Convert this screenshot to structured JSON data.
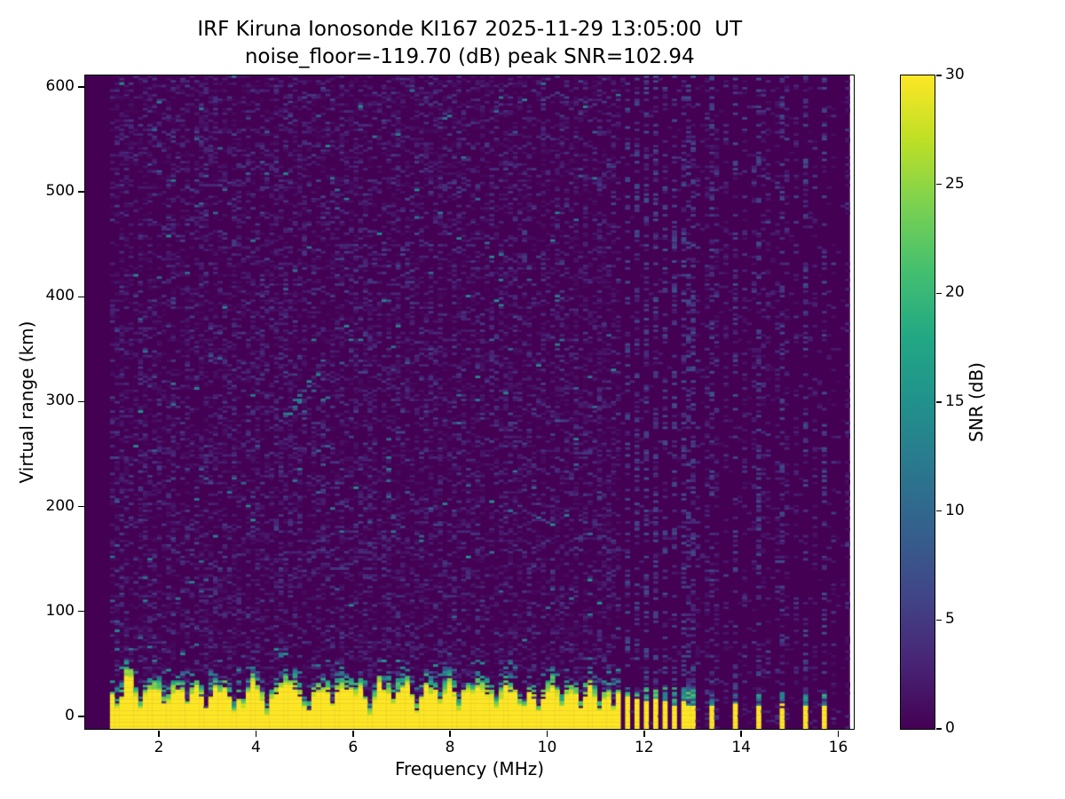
{
  "chart_data": {
    "type": "heatmap",
    "title_line1": "IRF Kiruna Ionosonde KI167 2025-11-29 13:05:00  UT",
    "title_line2": "noise_floor=-119.70 (dB) peak SNR=102.94",
    "station": "KI167",
    "timestamp": "2025-11-29 13:05:00 UT",
    "noise_floor_db": -119.7,
    "peak_snr_db": 102.94,
    "xlabel": "Frequency (MHz)",
    "ylabel": "Virtual range (km)",
    "colorbar_label": "SNR (dB)",
    "xlim": [
      0.49,
      16.32
    ],
    "ylim": [
      -12,
      611
    ],
    "clim": [
      0,
      30
    ],
    "xticks": [
      2,
      4,
      6,
      8,
      10,
      12,
      14,
      16
    ],
    "yticks": [
      0,
      100,
      200,
      300,
      400,
      500,
      600
    ],
    "colorbar_ticks": [
      0,
      5,
      10,
      15,
      20,
      25,
      30
    ],
    "grid": false,
    "legend": "none",
    "colormap": "viridis",
    "colormap_stops": [
      [
        0.0,
        "#440154"
      ],
      [
        0.1,
        "#482475"
      ],
      [
        0.2,
        "#414487"
      ],
      [
        0.3,
        "#355f8d"
      ],
      [
        0.4,
        "#2a788e"
      ],
      [
        0.5,
        "#21918c"
      ],
      [
        0.6,
        "#22a884"
      ],
      [
        0.7,
        "#44bf70"
      ],
      [
        0.8,
        "#7ad151"
      ],
      [
        0.9,
        "#bddf26"
      ],
      [
        1.0,
        "#fde725"
      ]
    ],
    "data_extent": {
      "f_min": 1.0,
      "f_max": 16.25,
      "mesh_f_min": 0.49
    },
    "features": {
      "ground_band": {
        "f_start": 1.0,
        "f_end": 11.51,
        "top_km_base": 27,
        "top_km_jitter": 9,
        "value_db": 30,
        "low_freq_thickening_until_mhz": 2.2
      },
      "band_notches": [
        {
          "f": 1.15,
          "top_km": 11
        },
        {
          "f": 1.66,
          "top_km": 12
        },
        {
          "f": 2.16,
          "top_km": 16
        },
        {
          "f": 2.62,
          "top_km": 14
        },
        {
          "f": 2.95,
          "top_km": 11
        },
        {
          "f": 3.55,
          "top_km": 9
        },
        {
          "f": 3.78,
          "top_km": 13
        },
        {
          "f": 4.22,
          "top_km": 8
        },
        {
          "f": 5.05,
          "top_km": 12
        },
        {
          "f": 5.6,
          "top_km": 15
        },
        {
          "f": 6.38,
          "top_km": 7
        },
        {
          "f": 6.8,
          "top_km": 16
        },
        {
          "f": 7.32,
          "top_km": 9
        },
        {
          "f": 7.8,
          "top_km": 15
        },
        {
          "f": 8.2,
          "top_km": 13
        },
        {
          "f": 8.95,
          "top_km": 11
        },
        {
          "f": 9.5,
          "top_km": 14
        },
        {
          "f": 9.85,
          "top_km": 10
        },
        {
          "f": 10.3,
          "top_km": 13
        },
        {
          "f": 10.7,
          "top_km": 12
        },
        {
          "f": 11.1,
          "top_km": 10
        },
        {
          "f": 11.35,
          "top_km": 12
        }
      ],
      "comb_stripes_mhz": [
        11.51,
        11.69,
        11.87,
        12.06,
        12.24,
        12.42,
        12.61,
        12.79,
        12.97
      ],
      "isolated_stripes_mhz": [
        13.37,
        13.9,
        14.33,
        14.85,
        15.3,
        15.76
      ],
      "rfi_column_step_mhz": 0.182,
      "echo_trace": {
        "f_start": 4.55,
        "km_start": 280,
        "f_end": 5.45,
        "km_end": 338
      },
      "noise": {
        "fill_probability": 0.42,
        "typical_db_max": 6.5,
        "bright_probability": 0.007,
        "bright_db": [
          8,
          15
        ]
      }
    }
  }
}
